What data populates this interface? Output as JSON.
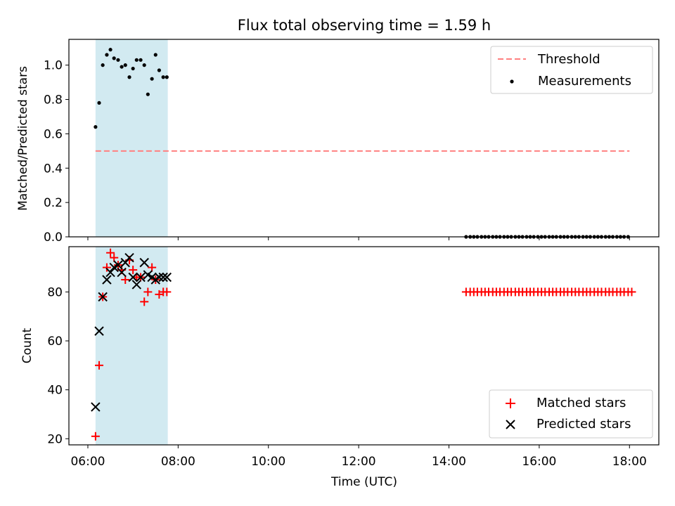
{
  "chart_data": {
    "title": "Flux total observing time = 1.59 h",
    "xlabel": "Time (UTC)",
    "x_unit": "hours UTC",
    "x_ticks": [
      {
        "value": 6.5,
        "label": "06:00"
      },
      {
        "value": 8.5,
        "label": "08:00"
      },
      {
        "value": 10.5,
        "label": "10:00"
      },
      {
        "value": 12.5,
        "label": "12:00"
      },
      {
        "value": 14.5,
        "label": "14:00"
      },
      {
        "value": 16.5,
        "label": "16:00"
      },
      {
        "value": 18.5,
        "label": "18:00"
      }
    ],
    "xlim": [
      6.08,
      19.15
    ],
    "shaded_span": {
      "x0": 6.67,
      "x1": 8.27,
      "color": "#add8e6"
    },
    "panels": [
      {
        "type": "scatter",
        "ylabel": "Matched/Predicted stars",
        "ylim": [
          0,
          1.15
        ],
        "y_ticks": [
          "0.0",
          "0.2",
          "0.4",
          "0.6",
          "0.8",
          "1.0"
        ],
        "y_tick_values": [
          0.0,
          0.2,
          0.4,
          0.6,
          0.8,
          1.0
        ],
        "legend": {
          "placement": "top-right",
          "entries": [
            "Threshold",
            "Measurements"
          ]
        },
        "threshold": {
          "name": "Threshold",
          "y": 0.5,
          "x0": 6.67,
          "x1": 18.5,
          "color": "#ff8080",
          "style": "dashed"
        },
        "series": [
          {
            "name": "Measurements",
            "color": "#000000",
            "x": [
              6.67,
              6.75,
              6.83,
              6.92,
              7.0,
              7.08,
              7.17,
              7.25,
              7.33,
              7.42,
              7.5,
              7.58,
              7.67,
              7.75,
              7.83,
              7.92,
              8.0,
              8.08,
              8.17,
              8.25,
              14.88,
              14.97,
              15.05,
              15.13,
              15.22,
              15.3,
              15.38,
              15.47,
              15.55,
              15.63,
              15.72,
              15.8,
              15.88,
              15.97,
              16.05,
              16.13,
              16.22,
              16.3,
              16.38,
              16.47,
              16.55,
              16.63,
              16.72,
              16.8,
              16.88,
              16.97,
              17.05,
              17.13,
              17.22,
              17.3,
              17.38,
              17.47,
              17.55,
              17.63,
              17.72,
              17.8,
              17.88,
              17.97,
              18.05,
              18.13,
              18.22,
              18.3,
              18.38,
              18.47
            ],
            "y": [
              0.64,
              0.78,
              1.0,
              1.06,
              1.09,
              1.04,
              1.03,
              0.99,
              1.0,
              0.93,
              0.98,
              1.03,
              1.03,
              1.0,
              0.83,
              0.92,
              1.06,
              0.97,
              0.93,
              0.93,
              0,
              0,
              0,
              0,
              0,
              0,
              0,
              0,
              0,
              0,
              0,
              0,
              0,
              0,
              0,
              0,
              0,
              0,
              0,
              0,
              0,
              0,
              0,
              0,
              0,
              0,
              0,
              0,
              0,
              0,
              0,
              0,
              0,
              0,
              0,
              0,
              0,
              0,
              0,
              0,
              0,
              0,
              0,
              0
            ]
          }
        ]
      },
      {
        "type": "scatter",
        "ylabel": "Count",
        "ylim": [
          17.5,
          98.5
        ],
        "y_ticks": [
          "20",
          "40",
          "60",
          "80"
        ],
        "y_tick_values": [
          20,
          40,
          60,
          80
        ],
        "legend": {
          "placement": "bottom-right",
          "entries": [
            "Matched stars",
            "Predicted stars"
          ]
        },
        "series": [
          {
            "name": "Matched stars",
            "marker": "+",
            "color": "#ff0000",
            "x": [
              6.67,
              6.75,
              6.83,
              6.92,
              7.0,
              7.08,
              7.17,
              7.25,
              7.33,
              7.42,
              7.5,
              7.58,
              7.67,
              7.75,
              7.83,
              7.92,
              8.0,
              8.08,
              8.17,
              8.25,
              14.88,
              14.97,
              15.05,
              15.13,
              15.22,
              15.3,
              15.38,
              15.47,
              15.55,
              15.63,
              15.72,
              15.8,
              15.88,
              15.97,
              16.05,
              16.13,
              16.22,
              16.3,
              16.38,
              16.47,
              16.55,
              16.63,
              16.72,
              16.8,
              16.88,
              16.97,
              17.05,
              17.13,
              17.22,
              17.3,
              17.38,
              17.47,
              17.55,
              17.63,
              17.72,
              17.8,
              17.88,
              17.97,
              18.05,
              18.13,
              18.22,
              18.3,
              18.38,
              18.47,
              18.55
            ],
            "y": [
              21,
              50,
              78,
              90,
              96,
              94,
              91,
              89,
              85,
              93,
              89,
              86,
              86,
              76,
              80,
              90,
              85,
              79,
              80,
              80,
              80,
              80,
              80,
              80,
              80,
              80,
              80,
              80,
              80,
              80,
              80,
              80,
              80,
              80,
              80,
              80,
              80,
              80,
              80,
              80,
              80,
              80,
              80,
              80,
              80,
              80,
              80,
              80,
              80,
              80,
              80,
              80,
              80,
              80,
              80,
              80,
              80,
              80,
              80,
              80,
              80,
              80,
              80,
              80,
              80
            ]
          },
          {
            "name": "Predicted stars",
            "marker": "x",
            "color": "#000000",
            "x": [
              6.67,
              6.75,
              6.83,
              6.92,
              7.0,
              7.08,
              7.17,
              7.25,
              7.33,
              7.42,
              7.5,
              7.58,
              7.67,
              7.75,
              7.83,
              7.92,
              8.0,
              8.08,
              8.17,
              8.25
            ],
            "y": [
              33,
              64,
              78,
              85,
              88,
              90,
              91,
              88,
              92,
              94,
              86,
              83,
              86,
              92,
              87,
              86,
              85,
              86,
              86,
              86
            ]
          }
        ]
      }
    ]
  }
}
